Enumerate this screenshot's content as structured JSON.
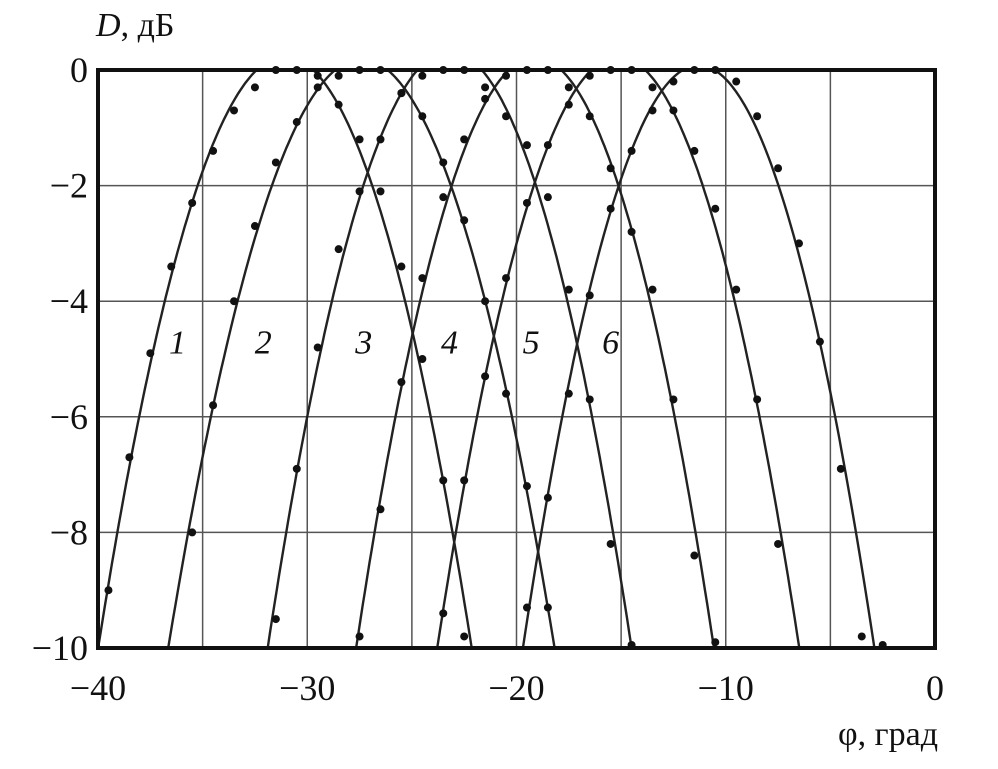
{
  "chart_data": {
    "type": "line",
    "ylabel_symbol": "D",
    "ylabel_unit": ", дБ",
    "xlabel": "φ, град",
    "xlim": [
      -40,
      0
    ],
    "ylim": [
      -10,
      0
    ],
    "xticks": [
      -40,
      -30,
      -20,
      -10,
      0
    ],
    "xtick_labels": [
      "−40",
      "−30",
      "−20",
      "−10",
      "0"
    ],
    "yticks": [
      0,
      -2,
      -4,
      -6,
      -8,
      -10
    ],
    "ytick_labels": [
      "0",
      "−2",
      "−4",
      "−6",
      "−8",
      "−10"
    ],
    "x_gridlines": [
      -35,
      -30,
      -25,
      -20,
      -15,
      -10,
      -5
    ],
    "y_gridlines": [
      -2,
      -4,
      -6,
      -8
    ],
    "grid": true,
    "line_color": "#222222",
    "series": [
      {
        "label": "1",
        "label_at": [
          -36.2,
          -4.7
        ],
        "markers_x": [
          -39.5,
          -38.5,
          -37.5,
          -36.5,
          -35.5,
          -34.5,
          -33.5,
          -32.5,
          -31.5,
          -30.5,
          -29.5,
          -28.5,
          -27.5,
          -26.5,
          -25.5,
          -24.5,
          -23.5,
          -22.5
        ],
        "markers_y": [
          -9.0,
          -6.7,
          -4.9,
          -3.4,
          -2.3,
          -1.4,
          -0.7,
          -0.3,
          0,
          0,
          -0.1,
          -0.6,
          -1.2,
          -2.1,
          -3.4,
          -5.0,
          -7.1,
          -9.8
        ]
      },
      {
        "label": "2",
        "label_at": [
          -32.1,
          -4.7
        ],
        "markers_x": [
          -35.5,
          -34.5,
          -33.5,
          -32.5,
          -31.5,
          -30.5,
          -29.5,
          -28.5,
          -27.5,
          -26.5,
          -25.5,
          -24.5,
          -23.5,
          -22.5,
          -21.5,
          -20.5,
          -19.5,
          -18.5
        ],
        "markers_y": [
          -8.0,
          -5.8,
          -4.0,
          -2.7,
          -1.6,
          -0.9,
          -0.3,
          -0.1,
          0,
          0,
          -0.4,
          -0.8,
          -1.6,
          -2.6,
          -4.0,
          -5.6,
          -7.2,
          -9.3
        ]
      },
      {
        "label": "3",
        "label_at": [
          -27.3,
          -4.7
        ],
        "markers_x": [
          -31.5,
          -30.5,
          -29.5,
          -28.5,
          -27.5,
          -26.5,
          -25.5,
          -24.5,
          -23.5,
          -22.5,
          -21.5,
          -20.5,
          -19.5,
          -18.5,
          -17.5,
          -16.5,
          -15.5,
          -14.5
        ],
        "markers_y": [
          -9.5,
          -6.9,
          -4.8,
          -3.1,
          -2.1,
          -1.2,
          -0.4,
          -0.1,
          0,
          0,
          -0.3,
          -0.8,
          -1.3,
          -2.2,
          -3.8,
          -5.7,
          -8.2,
          -10.0
        ]
      },
      {
        "label": "4",
        "label_at": [
          -23.2,
          -4.7
        ],
        "markers_x": [
          -27.5,
          -26.5,
          -25.5,
          -24.5,
          -23.5,
          -22.5,
          -21.5,
          -20.5,
          -19.5,
          -18.5,
          -17.5,
          -16.5,
          -15.5,
          -14.5,
          -13.5,
          -12.5,
          -11.5,
          -10.5
        ],
        "markers_y": [
          -9.8,
          -7.6,
          -5.4,
          -3.6,
          -2.2,
          -1.2,
          -0.5,
          -0.1,
          0,
          0,
          -0.3,
          -0.8,
          -1.7,
          -2.8,
          -3.8,
          -5.7,
          -8.4,
          -9.9
        ]
      },
      {
        "label": "5",
        "label_at": [
          -19.3,
          -4.7
        ],
        "markers_x": [
          -23.5,
          -22.5,
          -21.5,
          -20.5,
          -19.5,
          -18.5,
          -17.5,
          -16.5,
          -15.5,
          -14.5,
          -13.5,
          -12.5,
          -11.5,
          -10.5,
          -9.5,
          -8.5,
          -7.5
        ],
        "markers_y": [
          -9.4,
          -7.1,
          -5.3,
          -3.6,
          -2.3,
          -1.3,
          -0.6,
          -0.1,
          0,
          0,
          -0.3,
          -0.7,
          -1.4,
          -2.4,
          -3.8,
          -5.7,
          -8.2
        ]
      },
      {
        "label": "6",
        "label_at": [
          -15.5,
          -4.7
        ],
        "markers_x": [
          -19.5,
          -18.5,
          -17.5,
          -16.5,
          -15.5,
          -14.5,
          -13.5,
          -12.5,
          -11.5,
          -10.5,
          -9.5,
          -8.5,
          -7.5,
          -6.5,
          -5.5,
          -4.5,
          -3.5,
          -2.5
        ],
        "markers_y": [
          -9.3,
          -7.4,
          -5.6,
          -3.9,
          -2.4,
          -1.4,
          -0.7,
          -0.2,
          0,
          0,
          -0.2,
          -0.8,
          -1.7,
          -3.0,
          -4.7,
          -6.9,
          -9.8,
          -10.0
        ]
      }
    ]
  }
}
